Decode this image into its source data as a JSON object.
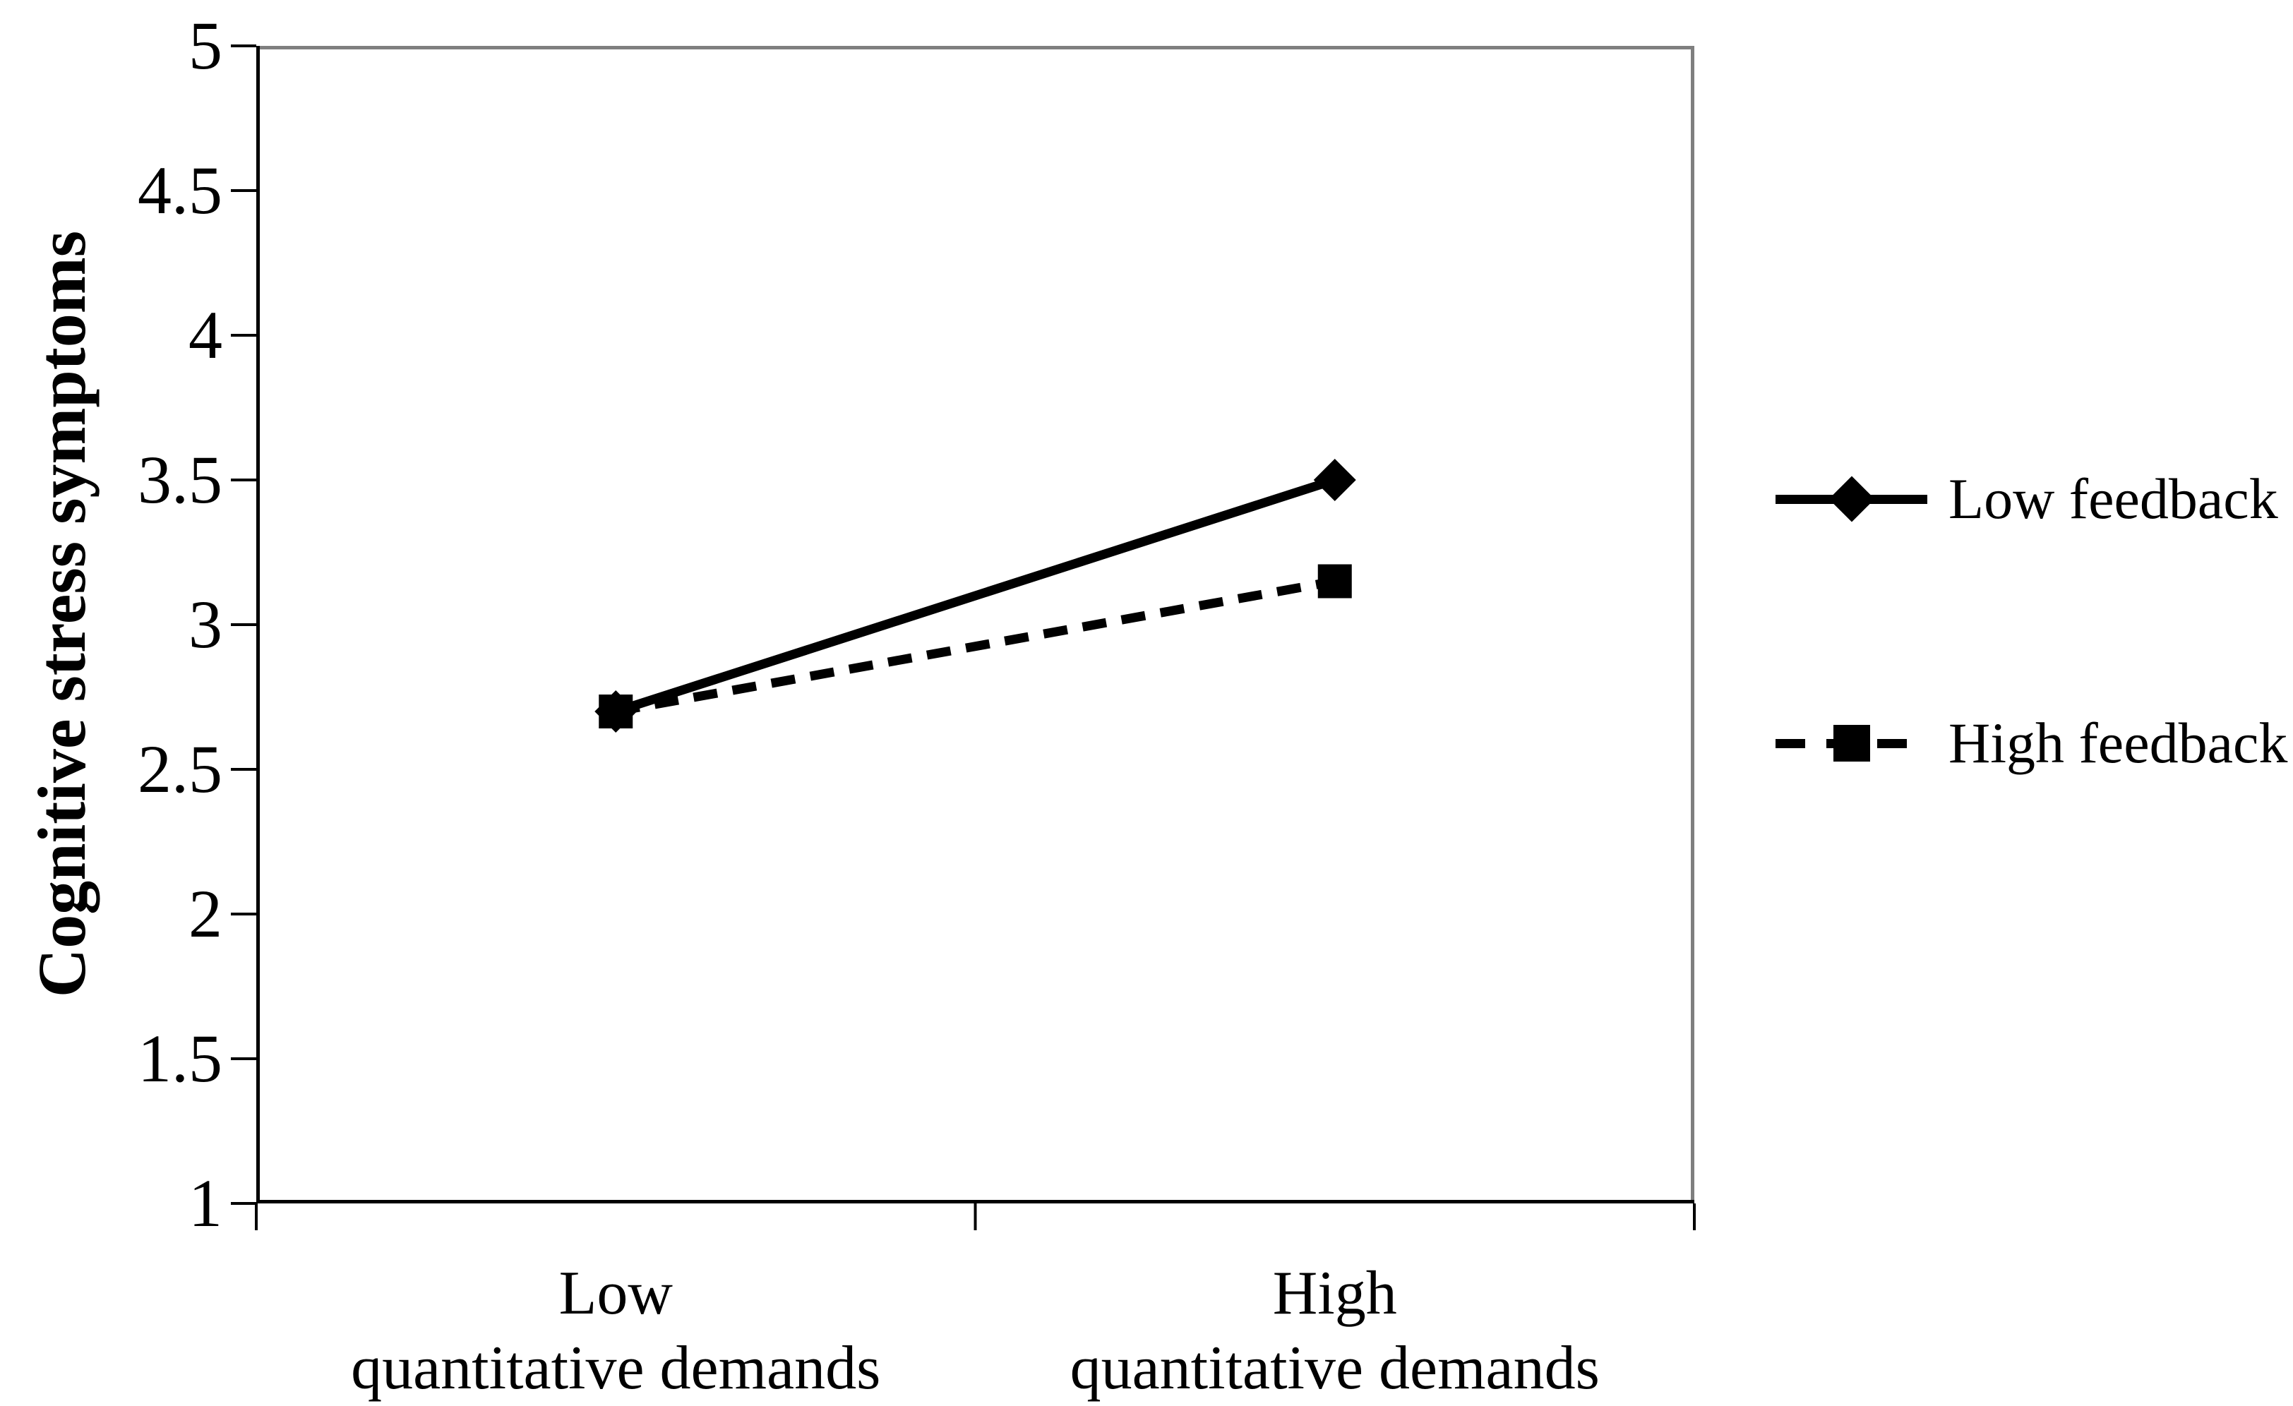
{
  "chart_data": {
    "type": "line",
    "title": "",
    "xlabel": "",
    "ylabel": "Cognitive stress symptoms",
    "categories": [
      "Low\nquantitative demands",
      "High\nquantitative demands"
    ],
    "series": [
      {
        "name": "Low feedback",
        "marker": "diamond",
        "line_style": "solid",
        "values": [
          2.7,
          3.5
        ]
      },
      {
        "name": "High feedback",
        "marker": "square",
        "line_style": "dashed",
        "values": [
          2.7,
          3.15
        ]
      }
    ],
    "ylim": [
      1,
      5
    ],
    "ytick_step": 0.5,
    "ytick_labels": [
      "5",
      "4.5",
      "4",
      "3.5",
      "3",
      "2.5",
      "2",
      "1.5",
      "1"
    ],
    "grid": false,
    "legend_position": "right",
    "colors": {
      "line": "#000000",
      "plot_border": "#7f7f7f",
      "text": "#000000",
      "background": "#ffffff"
    }
  }
}
